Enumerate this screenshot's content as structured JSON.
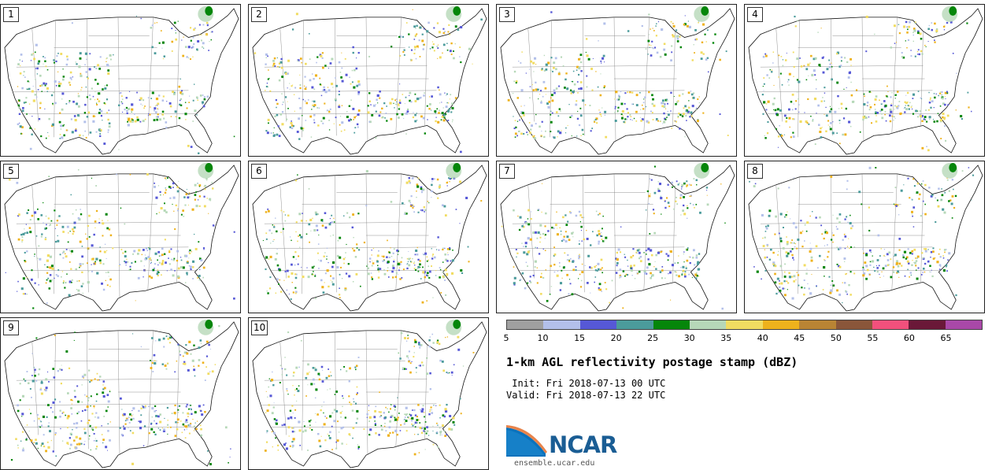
{
  "panels": [
    {
      "label": "1"
    },
    {
      "label": "2"
    },
    {
      "label": "3"
    },
    {
      "label": "4"
    },
    {
      "label": "5"
    },
    {
      "label": "6"
    },
    {
      "label": "7"
    },
    {
      "label": "8"
    },
    {
      "label": "9"
    },
    {
      "label": "10"
    }
  ],
  "colorbar": {
    "colors": [
      "#a0a0a0",
      "#b3c0ea",
      "#5658d6",
      "#4b9b9b",
      "#05860a",
      "#b6d8b8",
      "#f1dc61",
      "#eeb21c",
      "#b98434",
      "#8a563a",
      "#f2507c",
      "#6a1838",
      "#a948a8"
    ],
    "ticks": [
      "5",
      "10",
      "15",
      "20",
      "25",
      "30",
      "35",
      "40",
      "45",
      "50",
      "55",
      "60",
      "65"
    ]
  },
  "title": "1-km AGL reflectivity postage stamp (dBZ)",
  "init": " Init: Fri 2018-07-13 00 UTC",
  "valid": "Valid: Fri 2018-07-13 22 UTC",
  "logo": {
    "text": "NCAR",
    "site": "ensemble.ucar.edu"
  }
}
